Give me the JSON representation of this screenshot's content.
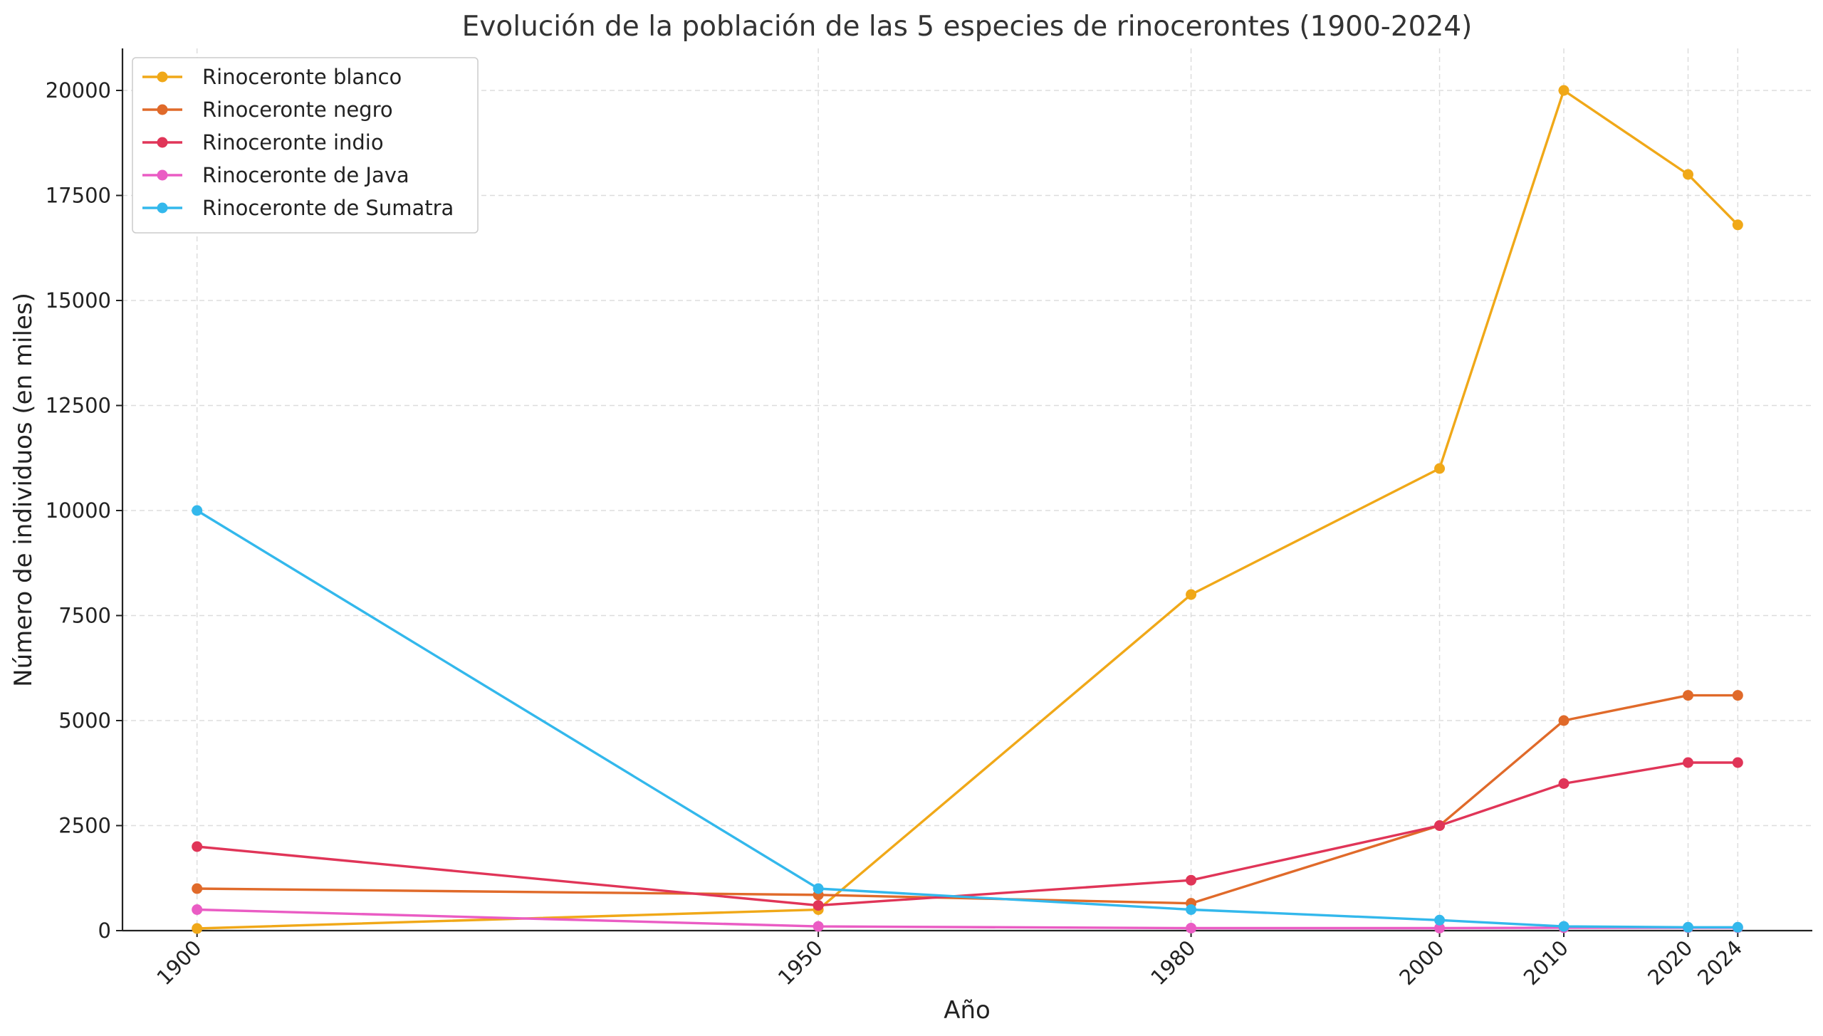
{
  "chart_data": {
    "type": "line",
    "title": "Evolución de la población de las 5 especies de rinocerontes (1900-2024)",
    "xlabel": "Año",
    "ylabel": "Número de individuos (en miles)",
    "x": [
      1900,
      1950,
      1980,
      2000,
      2010,
      2020,
      2024
    ],
    "x_tick_labels": [
      "1900",
      "1950",
      "1980",
      "2000",
      "2010",
      "2020",
      "2024"
    ],
    "y_ticks": [
      0,
      2500,
      5000,
      7500,
      10000,
      12500,
      15000,
      17500,
      20000
    ],
    "y_tick_labels": [
      "0",
      "2500",
      "5000",
      "7500",
      "10000",
      "12500",
      "15000",
      "17500",
      "20000"
    ],
    "xlim": [
      1894,
      2030
    ],
    "ylim": [
      0,
      21000
    ],
    "grid": true,
    "legend_position": "top-left",
    "series": [
      {
        "name": "Rinoceronte blanco",
        "color": "#f0a818",
        "values": [
          50,
          500,
          8000,
          11000,
          20000,
          18000,
          16800
        ]
      },
      {
        "name": "Rinoceronte negro",
        "color": "#e06a2a",
        "values": [
          1000,
          850,
          650,
          2500,
          5000,
          5600,
          5600
        ]
      },
      {
        "name": "Rinoceronte indio",
        "color": "#e03558",
        "values": [
          2000,
          600,
          1200,
          2500,
          3500,
          4000,
          4000
        ]
      },
      {
        "name": "Rinoceronte de Java",
        "color": "#ea5cc4",
        "values": [
          500,
          100,
          60,
          60,
          70,
          70,
          70
        ]
      },
      {
        "name": "Rinoceronte de Sumatra",
        "color": "#33b8ec",
        "values": [
          10000,
          1000,
          500,
          250,
          100,
          80,
          80
        ]
      }
    ]
  }
}
